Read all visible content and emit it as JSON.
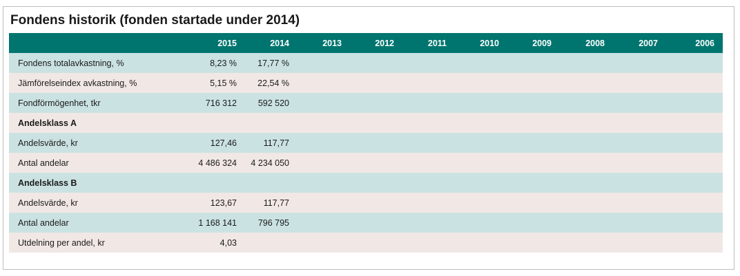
{
  "title": "Fondens historik (fonden startade under 2014)",
  "columns": [
    "2015",
    "2014",
    "2013",
    "2012",
    "2011",
    "2010",
    "2009",
    "2008",
    "2007",
    "2006"
  ],
  "rows": [
    {
      "label": "Fondens totalavkastning, %",
      "section": false,
      "values": [
        "8,23 %",
        "17,77 %",
        "",
        "",
        "",
        "",
        "",
        "",
        "",
        ""
      ]
    },
    {
      "label": "Jämförelseindex avkastning, %",
      "section": false,
      "values": [
        "5,15 %",
        "22,54 %",
        "",
        "",
        "",
        "",
        "",
        "",
        "",
        ""
      ]
    },
    {
      "label": "Fondförmögenhet, tkr",
      "section": false,
      "values": [
        "716 312",
        "592 520",
        "",
        "",
        "",
        "",
        "",
        "",
        "",
        ""
      ]
    },
    {
      "label": "Andelsklass A",
      "section": true,
      "values": [
        "",
        "",
        "",
        "",
        "",
        "",
        "",
        "",
        "",
        ""
      ]
    },
    {
      "label": "Andelsvärde, kr",
      "section": false,
      "values": [
        "127,46",
        "117,77",
        "",
        "",
        "",
        "",
        "",
        "",
        "",
        ""
      ]
    },
    {
      "label": "Antal andelar",
      "section": false,
      "values": [
        "4 486 324",
        "4 234 050",
        "",
        "",
        "",
        "",
        "",
        "",
        "",
        ""
      ]
    },
    {
      "label": "Andelsklass B",
      "section": true,
      "values": [
        "",
        "",
        "",
        "",
        "",
        "",
        "",
        "",
        "",
        ""
      ]
    },
    {
      "label": "Andelsvärde, kr",
      "section": false,
      "values": [
        "123,67",
        "117,77",
        "",
        "",
        "",
        "",
        "",
        "",
        "",
        ""
      ]
    },
    {
      "label": "Antal andelar",
      "section": false,
      "values": [
        "1 168 141",
        "796 795",
        "",
        "",
        "",
        "",
        "",
        "",
        "",
        ""
      ]
    },
    {
      "label": "Utdelning per andel, kr",
      "section": false,
      "values": [
        "4,03",
        "",
        "",
        "",
        "",
        "",
        "",
        "",
        "",
        ""
      ]
    }
  ],
  "colors": {
    "header_bg": "#00756f",
    "row_odd": "#cbe2e2",
    "row_even": "#f1e8e5"
  }
}
